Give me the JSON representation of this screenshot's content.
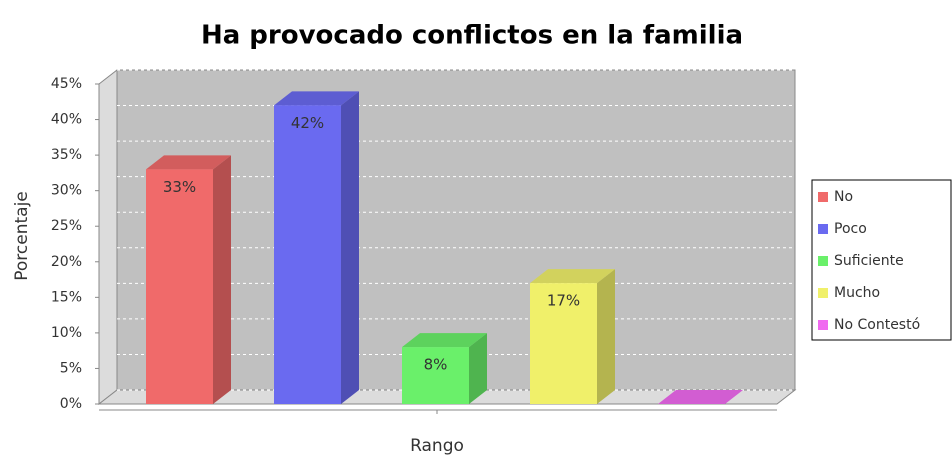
{
  "chart_data": {
    "type": "bar3d",
    "title": "Ha provocado conflictos en la familia",
    "x_label": "Rango",
    "y_label": "Porcentaje",
    "categories": [
      null
    ],
    "series": [
      {
        "name": "No",
        "color": "#f06a6a",
        "values": [
          33
        ],
        "value_labels": [
          "33%"
        ]
      },
      {
        "name": "Poco",
        "color": "#6a6af0",
        "values": [
          42
        ],
        "value_labels": [
          "42%"
        ]
      },
      {
        "name": "Suficiente",
        "color": "#6af06a",
        "values": [
          8
        ],
        "value_labels": [
          "8%"
        ]
      },
      {
        "name": "Mucho",
        "color": "#f0f06a",
        "values": [
          17
        ],
        "value_labels": [
          "17%"
        ]
      },
      {
        "name": "No Contestó",
        "color": "#f06af0",
        "values": [
          0
        ]
      }
    ],
    "ylim": [
      0,
      45
    ],
    "yticks": [
      {
        "value": 0,
        "label": "0%"
      },
      {
        "value": 5,
        "label": "5%"
      },
      {
        "value": 10,
        "label": "10%"
      },
      {
        "value": 15,
        "label": "15%"
      },
      {
        "value": 20,
        "label": "20%"
      },
      {
        "value": 25,
        "label": "25%"
      },
      {
        "value": 30,
        "label": "30%"
      },
      {
        "value": 35,
        "label": "35%"
      },
      {
        "value": 40,
        "label": "40%"
      },
      {
        "value": 45,
        "label": "45%"
      }
    ],
    "grid": true,
    "legend": "right"
  }
}
